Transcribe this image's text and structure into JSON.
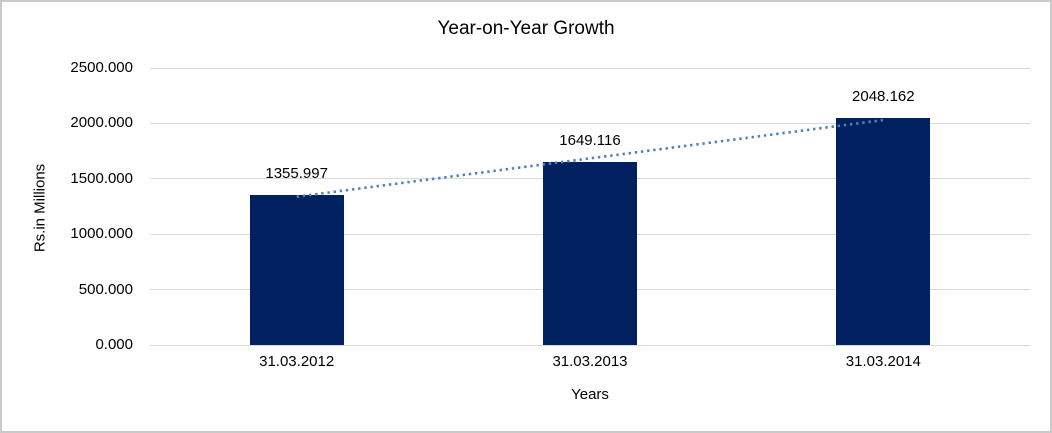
{
  "chart_data": {
    "type": "bar",
    "title": "Year-on-Year Growth",
    "xlabel": "Years",
    "ylabel": "Rs.in Millions",
    "categories": [
      "31.03.2012",
      "31.03.2013",
      "31.03.2014"
    ],
    "values": [
      1355.997,
      1649.116,
      2048.162
    ],
    "data_labels": [
      "1355.997",
      "1649.116",
      "2048.162"
    ],
    "y_ticks": [
      {
        "value": 0,
        "label": "0.000"
      },
      {
        "value": 500,
        "label": "500.000"
      },
      {
        "value": 1000,
        "label": "1000.000"
      },
      {
        "value": 1500,
        "label": "1500.000"
      },
      {
        "value": 2000,
        "label": "2000.000"
      },
      {
        "value": 2500,
        "label": "2500.000"
      }
    ],
    "ylim": [
      0,
      2500
    ],
    "grid": "horizontal",
    "legend": "none",
    "trendline": {
      "type": "linear",
      "style": "dotted"
    },
    "colors": {
      "bar": "#002060",
      "trendline": "#4f81bd",
      "gridline": "#d9d9d9",
      "text": "#000000",
      "chart_border": "#c9c9c9",
      "background": "#ffffff"
    }
  }
}
